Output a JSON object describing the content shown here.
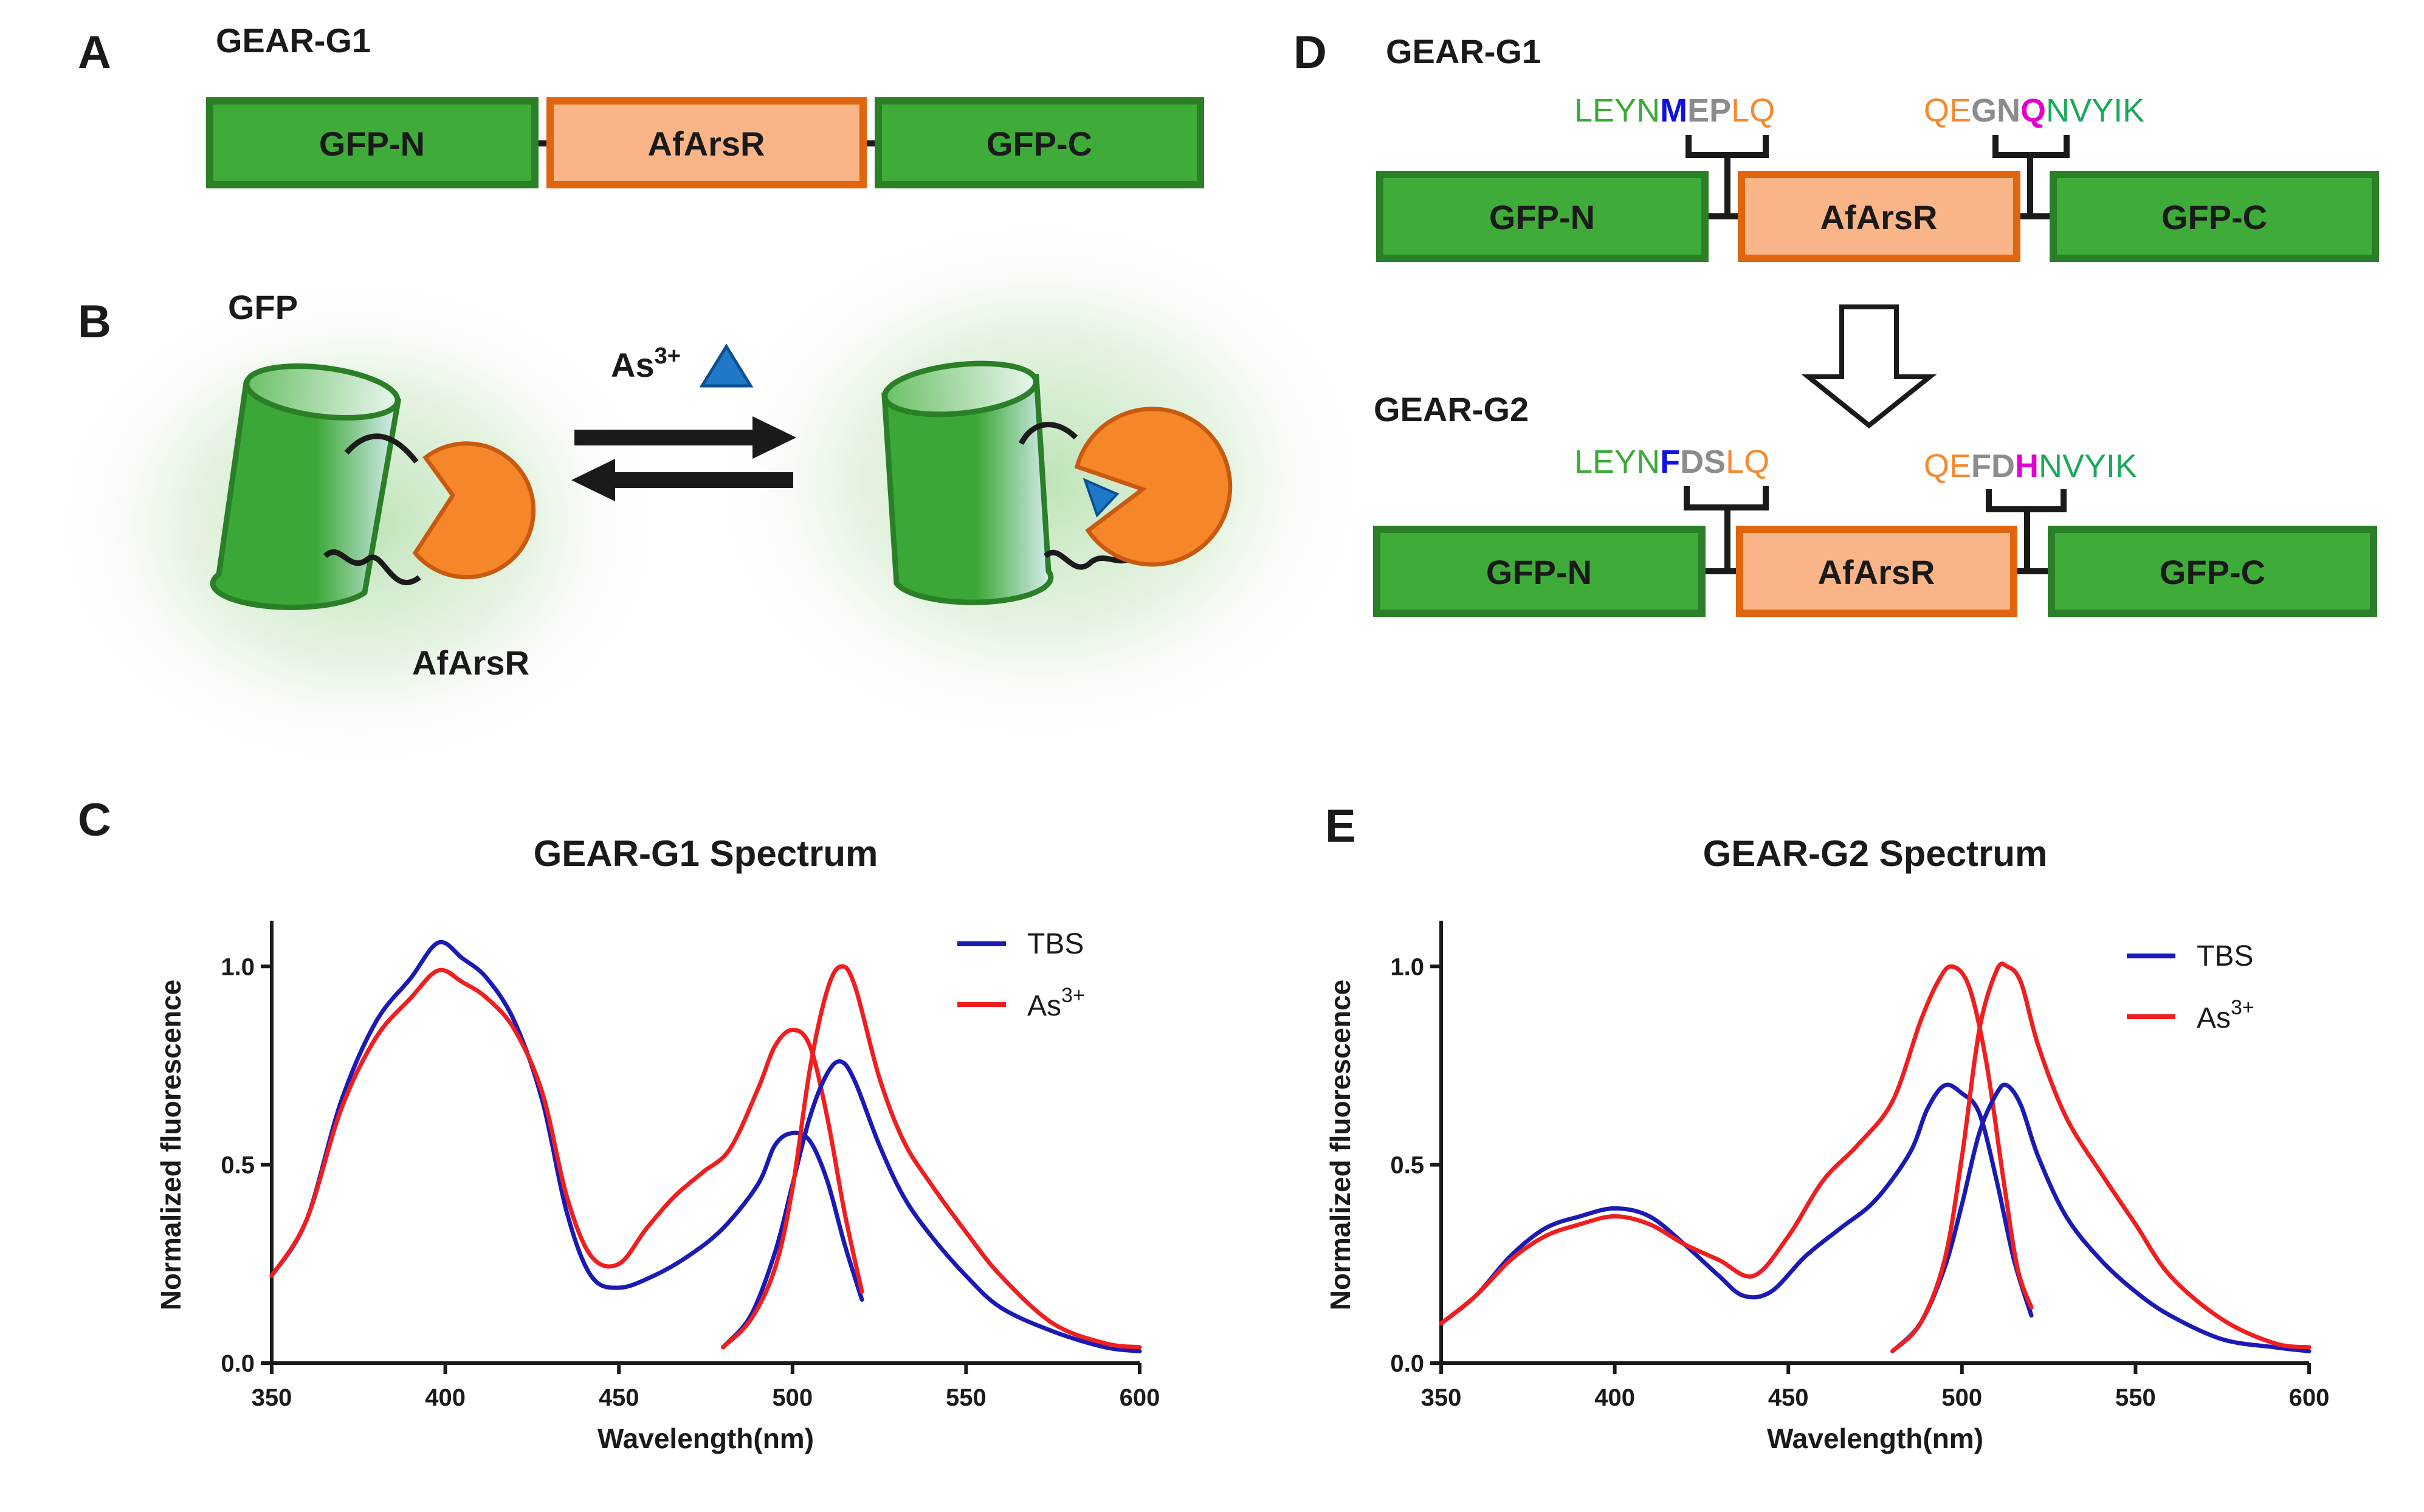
{
  "panels": {
    "A": {
      "label": "A",
      "construct": "GEAR-G1",
      "domains": [
        "GFP-N",
        "AfArsR",
        "GFP-C"
      ]
    },
    "B": {
      "label": "B",
      "gfp_label": "GFP",
      "ligand": "As",
      "ligand_sup": "3+",
      "protein_label": "AfArsR"
    },
    "D": {
      "label": "D",
      "top": {
        "construct": "GEAR-G1",
        "domains": [
          "GFP-N",
          "AfArsR",
          "GFP-C"
        ],
        "left_linker": [
          {
            "text": "LEYN",
            "color": "#3aa935"
          },
          {
            "text": "M",
            "color": "#1010e0",
            "bold": true
          },
          {
            "text": "EP",
            "color": "#8c8c8c",
            "bold": true
          },
          {
            "text": "LQ",
            "color": "#f5892e"
          }
        ],
        "right_linker": [
          {
            "text": "QE",
            "color": "#f5892e"
          },
          {
            "text": "GN",
            "color": "#8c8c8c",
            "bold": true
          },
          {
            "text": "Q",
            "color": "#e000d0",
            "bold": true
          },
          {
            "text": "NVYIK",
            "color": "#1aa85a"
          }
        ]
      },
      "bottom": {
        "construct": "GEAR-G2",
        "domains": [
          "GFP-N",
          "AfArsR",
          "GFP-C"
        ],
        "left_linker": [
          {
            "text": "LEYN",
            "color": "#3aa935"
          },
          {
            "text": "F",
            "color": "#1010e0",
            "bold": true
          },
          {
            "text": "DS",
            "color": "#8c8c8c",
            "bold": true
          },
          {
            "text": "LQ",
            "color": "#f5892e"
          }
        ],
        "right_linker": [
          {
            "text": "QE",
            "color": "#f5892e"
          },
          {
            "text": "FD",
            "color": "#8c8c8c",
            "bold": true
          },
          {
            "text": "H",
            "color": "#e000d0",
            "bold": true
          },
          {
            "text": "NVYIK",
            "color": "#1aa85a"
          }
        ]
      }
    },
    "C": {
      "label": "C"
    },
    "E": {
      "label": "E"
    }
  },
  "colors": {
    "gfp_fill": "#3fac3a",
    "gfp_stroke": "#2a7f27",
    "arsr_fill": "#f9b488",
    "arsr_stroke": "#e0650f",
    "tbs": "#1a1ab4",
    "as3": "#f01e1e",
    "pacman": "#f5862a",
    "triangle": "#1f78c8"
  },
  "chart_data": [
    {
      "type": "line",
      "title": "GEAR-G1 Spectrum",
      "xlabel": "Wavelength(nm)",
      "ylabel": "Normalized fluorescence",
      "xlim": [
        350,
        600
      ],
      "ylim": [
        0,
        1.1
      ],
      "xticks": [
        350,
        400,
        450,
        500,
        550,
        600
      ],
      "yticks": [
        0.0,
        0.5,
        1.0
      ],
      "yticklabels": [
        "0.0",
        "0.5",
        "1.0"
      ],
      "legend_position": "top-right",
      "series": [
        {
          "name": "TBS",
          "legend": true,
          "color": "#1a1a1a",
          "x": [
            350,
            360,
            370,
            380,
            390,
            398,
            405,
            412,
            420,
            428,
            435,
            442,
            450,
            460,
            470,
            480,
            490,
            495,
            500,
            505,
            510,
            515,
            520
          ],
          "y": [
            0.22,
            0.36,
            0.66,
            0.86,
            0.97,
            1.06,
            1.02,
            0.97,
            0.86,
            0.66,
            0.38,
            0.22,
            0.19,
            0.22,
            0.27,
            0.34,
            0.45,
            0.55,
            0.58,
            0.56,
            0.46,
            0.3,
            0.16
          ]
        },
        {
          "name": "As3+",
          "legend": true,
          "x": [
            350,
            360,
            370,
            380,
            390,
            398,
            405,
            412,
            420,
            428,
            435,
            442,
            450,
            458,
            466,
            474,
            482,
            490,
            495,
            500,
            505,
            510,
            515,
            520
          ],
          "y": [
            0.22,
            0.36,
            0.64,
            0.82,
            0.92,
            0.99,
            0.96,
            0.92,
            0.84,
            0.68,
            0.42,
            0.27,
            0.25,
            0.34,
            0.42,
            0.48,
            0.54,
            0.69,
            0.8,
            0.84,
            0.8,
            0.62,
            0.38,
            0.18
          ]
        },
        {
          "name": "TBS emission",
          "legend": false,
          "x": [
            480,
            488,
            495,
            500,
            505,
            510,
            514,
            518,
            525,
            532,
            540,
            550,
            560,
            575,
            590,
            600
          ],
          "y": [
            0.04,
            0.12,
            0.28,
            0.45,
            0.62,
            0.73,
            0.76,
            0.71,
            0.55,
            0.42,
            0.32,
            0.22,
            0.14,
            0.08,
            0.04,
            0.03
          ]
        },
        {
          "name": "As3+ emission",
          "legend": false,
          "x": [
            480,
            488,
            495,
            500,
            505,
            510,
            514,
            518,
            525,
            532,
            540,
            550,
            560,
            575,
            590,
            600
          ],
          "y": [
            0.04,
            0.11,
            0.24,
            0.44,
            0.74,
            0.94,
            1.0,
            0.95,
            0.72,
            0.56,
            0.45,
            0.33,
            0.22,
            0.1,
            0.05,
            0.04
          ]
        }
      ]
    },
    {
      "type": "line",
      "title": "GEAR-G2 Spectrum",
      "xlabel": "Wavelength(nm)",
      "ylabel": "Normalized fluorescence",
      "xlim": [
        350,
        600
      ],
      "ylim": [
        0,
        1.1
      ],
      "xticks": [
        350,
        400,
        450,
        500,
        550,
        600
      ],
      "yticks": [
        0.0,
        0.5,
        1.0
      ],
      "yticklabels": [
        "0.0",
        "0.5",
        "1.0"
      ],
      "legend_position": "top-right",
      "series": [
        {
          "name": "TBS",
          "legend": true,
          "x": [
            350,
            360,
            370,
            380,
            390,
            400,
            410,
            420,
            430,
            437,
            445,
            455,
            465,
            475,
            485,
            490,
            495,
            500,
            505,
            510,
            515,
            520
          ],
          "y": [
            0.1,
            0.17,
            0.27,
            0.34,
            0.37,
            0.39,
            0.37,
            0.3,
            0.22,
            0.17,
            0.18,
            0.27,
            0.34,
            0.41,
            0.53,
            0.64,
            0.7,
            0.68,
            0.63,
            0.46,
            0.26,
            0.12
          ]
        },
        {
          "name": "As3+",
          "legend": true,
          "x": [
            350,
            360,
            370,
            380,
            390,
            400,
            410,
            420,
            430,
            440,
            450,
            460,
            470,
            480,
            488,
            493,
            497,
            502,
            507,
            512,
            516,
            520
          ],
          "y": [
            0.1,
            0.17,
            0.26,
            0.32,
            0.35,
            0.37,
            0.35,
            0.3,
            0.26,
            0.22,
            0.32,
            0.46,
            0.55,
            0.66,
            0.86,
            0.96,
            1.0,
            0.95,
            0.76,
            0.46,
            0.24,
            0.14
          ]
        },
        {
          "name": "TBS emission",
          "legend": false,
          "x": [
            480,
            488,
            495,
            500,
            505,
            510,
            513,
            517,
            522,
            530,
            540,
            550,
            560,
            575,
            590,
            600
          ],
          "y": [
            0.03,
            0.1,
            0.24,
            0.4,
            0.58,
            0.68,
            0.7,
            0.65,
            0.52,
            0.37,
            0.26,
            0.18,
            0.12,
            0.06,
            0.04,
            0.03
          ]
        },
        {
          "name": "As3+ emission",
          "legend": false,
          "x": [
            480,
            488,
            495,
            500,
            505,
            510,
            513,
            517,
            522,
            530,
            540,
            550,
            560,
            575,
            590,
            600
          ],
          "y": [
            0.03,
            0.1,
            0.26,
            0.52,
            0.84,
            0.99,
            1.0,
            0.96,
            0.8,
            0.62,
            0.48,
            0.35,
            0.22,
            0.11,
            0.05,
            0.04
          ]
        }
      ],
      "legend_labels": [
        "TBS",
        "As3+"
      ]
    }
  ]
}
